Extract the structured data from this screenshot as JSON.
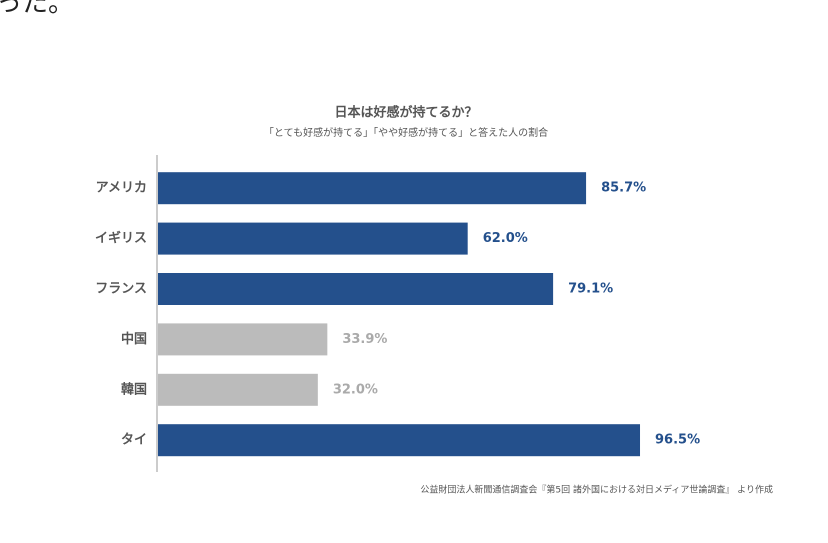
{
  "page_text": "った。",
  "chart_data": {
    "type": "barh",
    "title": "日本は好感が持てるか？",
    "subtitle": "「とても好感が持てる」「やや好感が持てる」と答えた人の割合",
    "categories": [
      "アメリカ",
      "イギリス",
      "フランス",
      "中国",
      "韓国",
      "タイ"
    ],
    "values": [
      85.7,
      62.0,
      79.1,
      33.9,
      32.0,
      96.5
    ],
    "value_labels": [
      "85.7%",
      "62.0%",
      "79.1%",
      "33.9%",
      "32.0%",
      "96.5%"
    ],
    "colors": [
      "#24508c",
      "#24508c",
      "#24508c",
      "#bbbbbb",
      "#bbbbbb",
      "#24508c"
    ],
    "label_colors": [
      "#24508c",
      "#24508c",
      "#24508c",
      "#aaaaaa",
      "#aaaaaa",
      "#24508c"
    ],
    "source": "公益財団法人新聞通信調査会『第5回 諸外国における対日メディア世論調査』 より作成"
  }
}
